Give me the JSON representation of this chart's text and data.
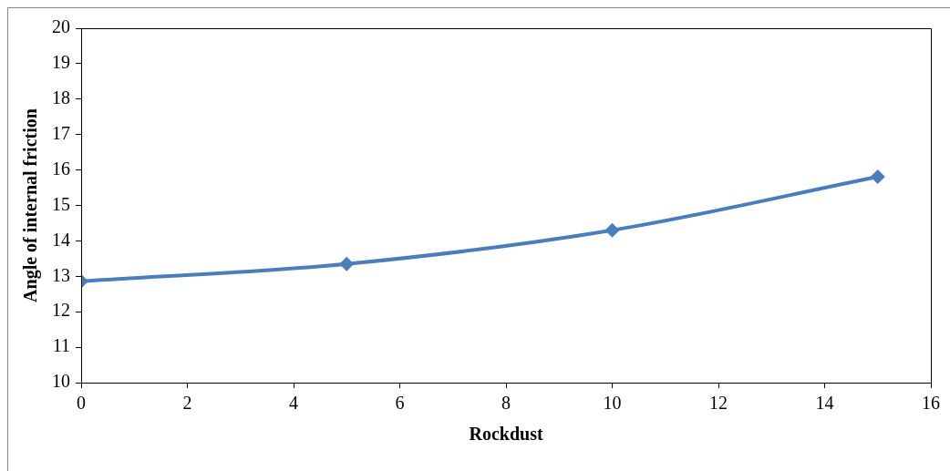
{
  "chart_data": {
    "type": "line",
    "xlabel": "Rockdust",
    "ylabel": "Angle of internal friction",
    "x": [
      0,
      5,
      10,
      15
    ],
    "series": [
      {
        "color": "#4a7ebb",
        "values": [
          12.86,
          13.35,
          14.3,
          15.81
        ]
      }
    ],
    "xlim": [
      0,
      16
    ],
    "xticks": [
      0,
      2,
      4,
      6,
      8,
      10,
      12,
      14,
      16
    ],
    "ylim": [
      10,
      20
    ],
    "yticks": [
      10,
      11,
      12,
      13,
      14,
      15,
      16,
      17,
      18,
      19,
      20
    ],
    "marker": "diamond",
    "line_style": "solid",
    "grid": false,
    "legend": false
  }
}
